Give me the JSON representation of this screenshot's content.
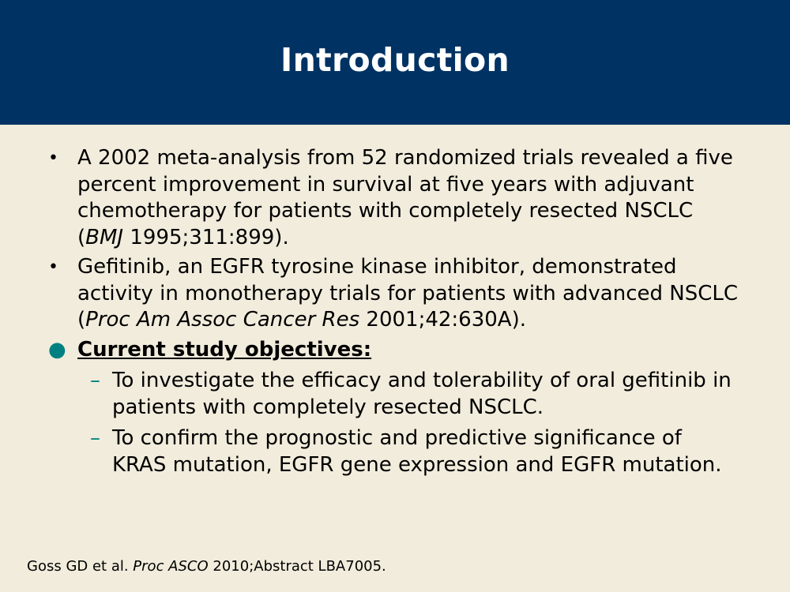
{
  "slide": {
    "title": "Introduction",
    "bullets": [
      {
        "marker": "•",
        "text_before": "A 2002 meta-analysis from 52 randomized trials revealed a five percent improvement in survival at five years with adjuvant chemotherapy for patients with completely resected NSCLC (",
        "citation_italic": "BMJ",
        "text_after": " 1995;311:899)."
      },
      {
        "marker": "•",
        "text_before": "Gefitinib, an EGFR tyrosine kinase inhibitor, demonstrated activity in monotherapy trials for patients with advanced NSCLC (",
        "citation_italic": "Proc Am Assoc Cancer Res",
        "text_after": " 2001;42:630A)."
      }
    ],
    "objectives": {
      "marker": "●",
      "heading": "Current study objectives:",
      "items": [
        {
          "marker": "–",
          "text": "To investigate the efficacy and tolerability of oral gefitinib in patients with completely resected NSCLC."
        },
        {
          "marker": "–",
          "text": "To confirm the prognostic and predictive significance of KRAS mutation, EGFR gene expression and EGFR mutation."
        }
      ]
    },
    "footer": {
      "text_before": "Goss GD et al. ",
      "citation_italic": "Proc ASCO",
      "text_after": " 2010;Abstract LBA7005."
    },
    "colors": {
      "header_bg": "#003263",
      "body_bg": "#f1ecdc",
      "accent": "#008080"
    }
  }
}
